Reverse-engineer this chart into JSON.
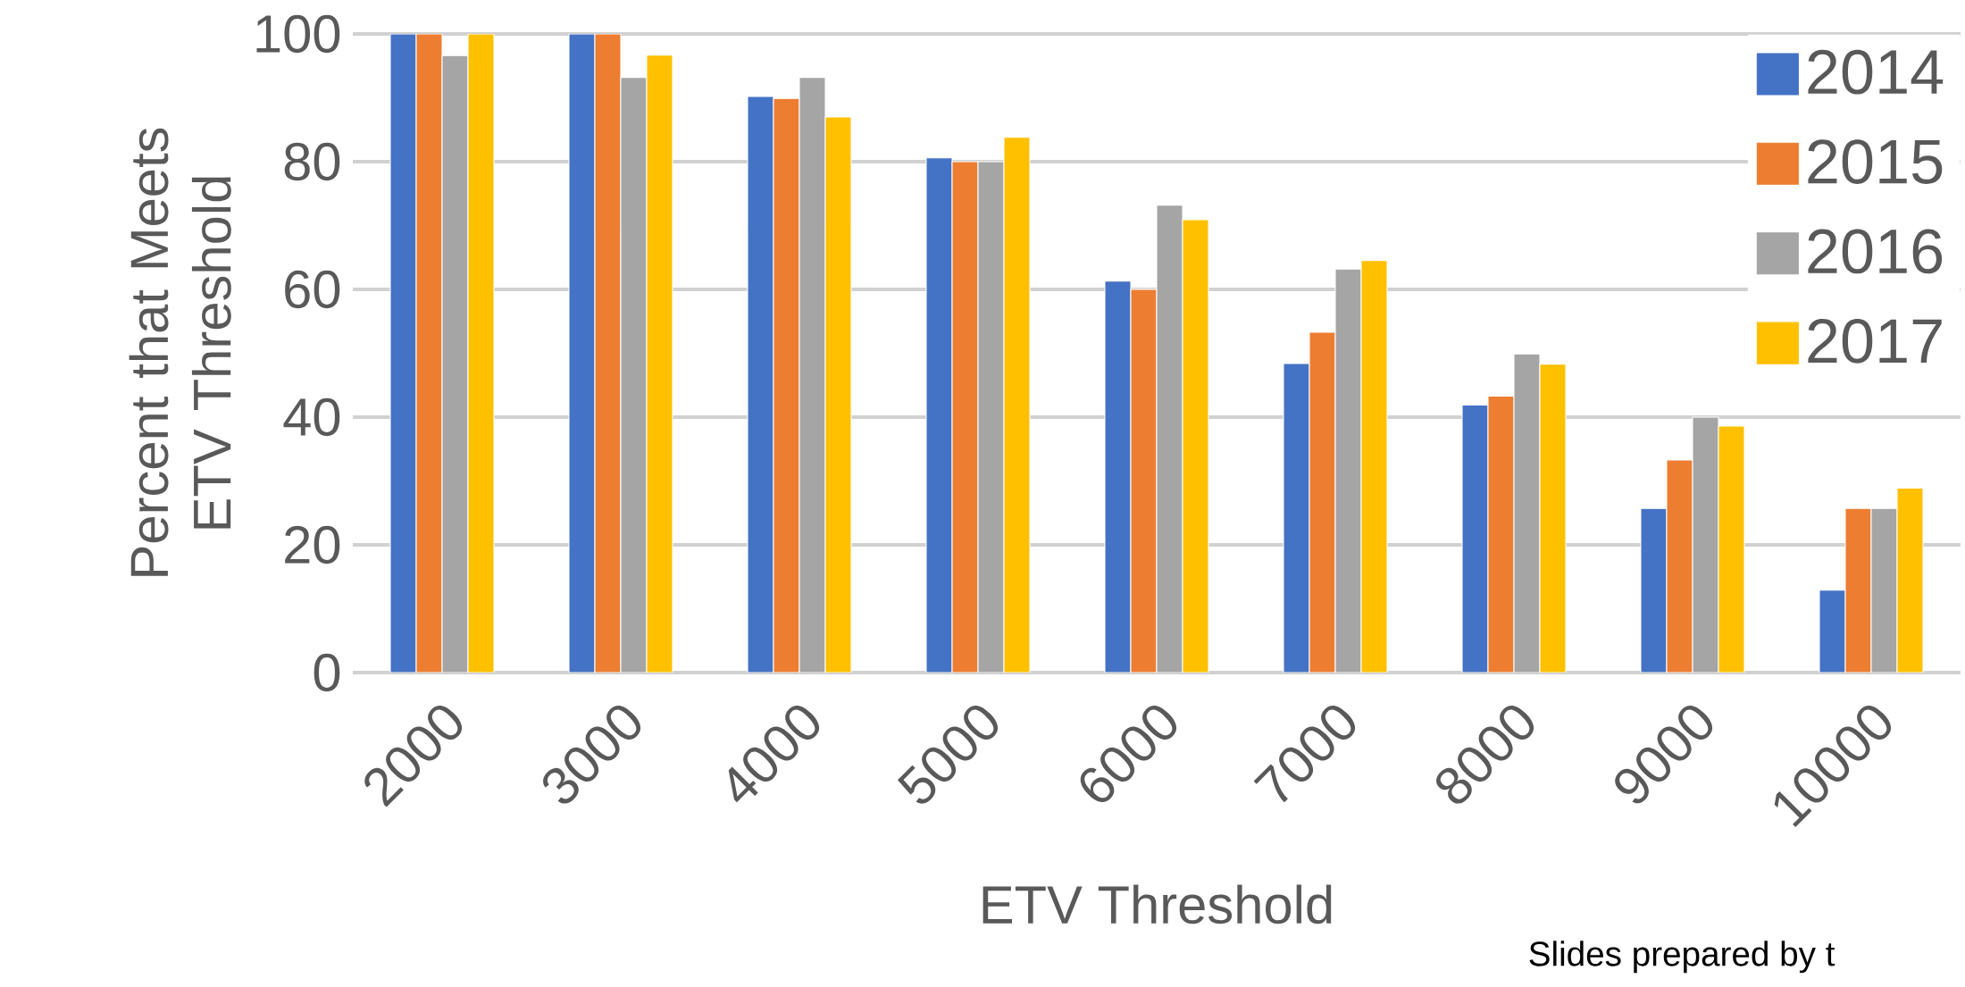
{
  "chart_data": {
    "type": "bar",
    "categories": [
      "2000",
      "3000",
      "4000",
      "5000",
      "6000",
      "7000",
      "8000",
      "9000",
      "10000"
    ],
    "series": [
      {
        "name": "2014",
        "color": "#4472c4",
        "values": [
          100,
          100,
          90.2,
          80.6,
          61.3,
          48.4,
          41.9,
          25.7,
          12.9
        ]
      },
      {
        "name": "2015",
        "color": "#ed7d31",
        "values": [
          100,
          100,
          89.9,
          80,
          60,
          53.3,
          43.3,
          33.3,
          25.7
        ]
      },
      {
        "name": "2016",
        "color": "#a5a5a5",
        "values": [
          96.6,
          93.2,
          93.2,
          80,
          73.2,
          63.2,
          49.9,
          40,
          25.7
        ]
      },
      {
        "name": "2017",
        "color": "#ffc000",
        "values": [
          100,
          96.7,
          87,
          83.8,
          70.9,
          64.5,
          48.3,
          38.6,
          28.9
        ]
      }
    ],
    "xlabel": "ETV Threshold",
    "ylabel": "Percent that Meets ETV Threshold",
    "ylim": [
      0,
      100
    ],
    "yticks": [
      0,
      20,
      40,
      60,
      80,
      100
    ],
    "grid": "y",
    "legend": "top right",
    "annotations": [
      "Slides prepared by t"
    ]
  }
}
